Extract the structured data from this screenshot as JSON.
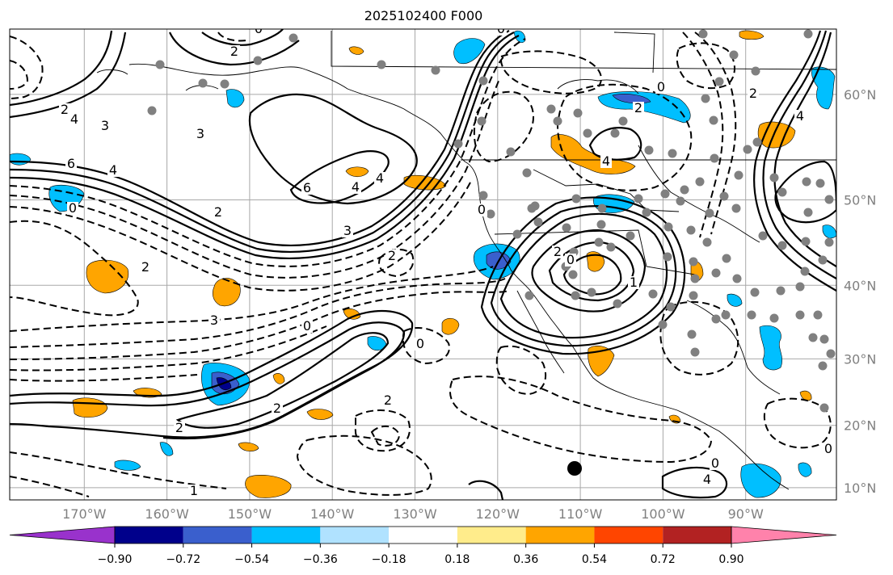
{
  "title": "2025102400 F000",
  "map": {
    "lat_labels": [
      "60°N",
      "50°N",
      "40°N",
      "30°N",
      "20°N",
      "10°N"
    ],
    "lat_values": [
      60,
      50,
      40,
      30,
      20,
      10
    ],
    "lon_labels": [
      "170°W",
      "160°W",
      "150°W",
      "140°W",
      "130°W",
      "120°W",
      "110°W",
      "100°W",
      "90°W"
    ],
    "lon_values": [
      -170,
      -160,
      -150,
      -140,
      -130,
      -120,
      -110,
      -100,
      -90
    ],
    "extent": {
      "lon_min": -180,
      "lon_max": -80,
      "lat_min": 8,
      "lat_max": 65
    }
  },
  "colorbar": {
    "tick_labels": [
      "−0.90",
      "−0.72",
      "−0.54",
      "−0.36",
      "−0.18",
      "0.18",
      "0.36",
      "0.54",
      "0.72",
      "0.90"
    ],
    "colors": [
      "#9932cc",
      "#00008b",
      "#3a5fcd",
      "#00bfff",
      "#b0e2ff",
      "#ffffff",
      "#ffec8b",
      "#ffa500",
      "#ff4500",
      "#b22222",
      "#ff82ab"
    ]
  },
  "contour_labels": [
    "6",
    "4",
    "3",
    "2",
    "0",
    "2",
    "3",
    "4",
    "6",
    "4",
    "2",
    "0",
    "3",
    "0",
    "2",
    "2",
    "0",
    "2",
    "4",
    "3",
    "2",
    "0",
    "2",
    "0",
    "1",
    "4",
    "2",
    "0",
    "2",
    "4",
    "0",
    "0",
    "4",
    "2",
    "0",
    "1"
  ]
}
